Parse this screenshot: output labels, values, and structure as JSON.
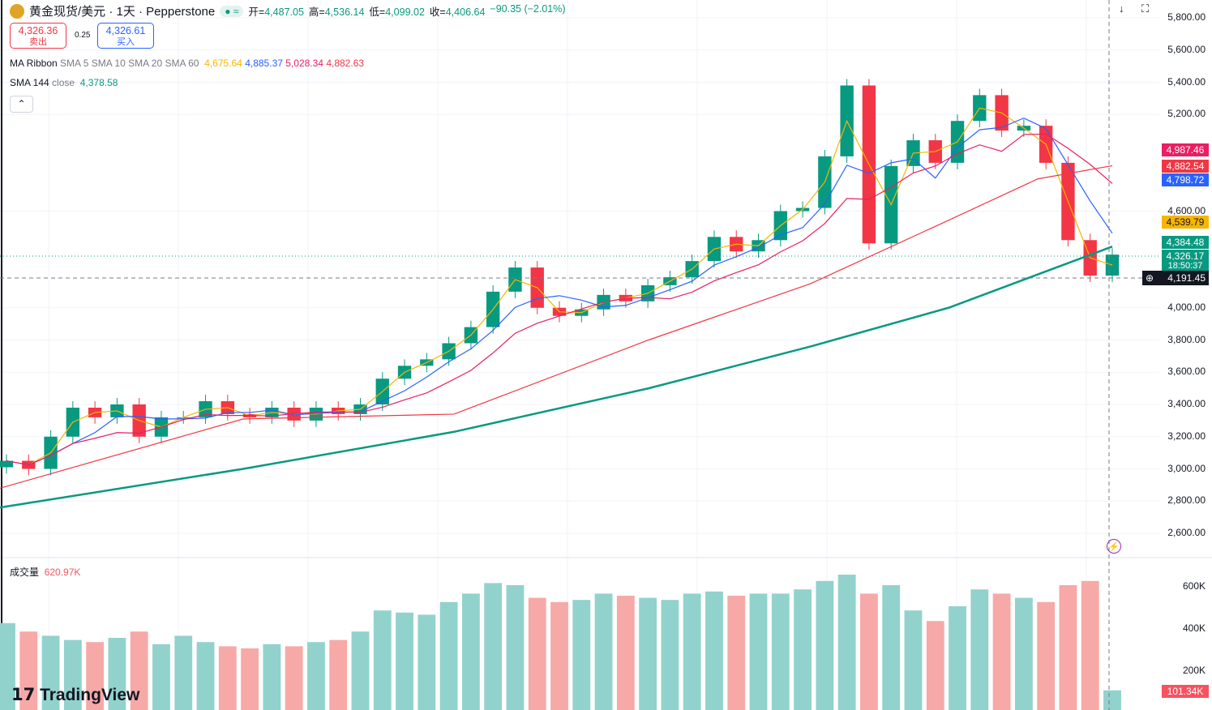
{
  "header": {
    "title": "黄金现货/美元 · 1天 · Pepperstone",
    "open_label": "开",
    "open": "4,487.05",
    "high_label": "高",
    "high": "4,536.14",
    "low_label": "低",
    "low": "4,099.02",
    "close_label": "收",
    "close": "4,406.64",
    "change": "−90.35 (−2.01%)"
  },
  "trade": {
    "sell_price": "4,326.36",
    "sell_label": "卖出",
    "spread": "0.25",
    "buy_price": "4,326.61",
    "buy_label": "买入"
  },
  "legend": {
    "ma_name": "MA Ribbon",
    "ma_params": "SMA 5 SMA 10 SMA 20 SMA 60",
    "ma_values": [
      "4,675.64",
      "4,885.37",
      "5,028.34",
      "4,882.63"
    ],
    "sma_name": "SMA 144",
    "sma_params": "close",
    "sma_value": "4,378.58",
    "volume_name": "成交量",
    "volume_value": "620.97K"
  },
  "colors": {
    "up": "#089981",
    "down": "#f23645",
    "sma5": "#f7b500",
    "sma10": "#2962ff",
    "sma20": "#e91e63",
    "sma60": "#f23645",
    "sma144": "#089981"
  },
  "price_axis": [
    "5,800.00",
    "5,600.00",
    "5,400.00",
    "5,200.00",
    "4,600.00",
    "4,000.00",
    "3,800.00",
    "3,600.00",
    "3,400.00",
    "3,200.00",
    "3,000.00",
    "2,800.00",
    "2,600.00"
  ],
  "price_tags": [
    {
      "text": "4,987.46",
      "color": "#e91e63"
    },
    {
      "text": "4,882.54",
      "color": "#f23645"
    },
    {
      "text": "4,798.72",
      "color": "#2962ff"
    },
    {
      "text": "4,539.79",
      "color": "#f7b500"
    },
    {
      "text": "4,384.48",
      "color": "#089981"
    },
    {
      "text": "4,326.17",
      "color": "#089981"
    }
  ],
  "countdown": "18:50:37",
  "crosshair_price": "4,191.45",
  "volume_axis": [
    "600K",
    "400K",
    "200K"
  ],
  "volume_tag": "101.34K",
  "brand": "TradingView",
  "chart_data": {
    "type": "candlestick",
    "ylim": [
      2600,
      5800
    ],
    "volume_ylim": [
      0,
      700
    ],
    "closes": [
      3050,
      3000,
      3200,
      3380,
      3320,
      3400,
      3200,
      3320,
      3320,
      3420,
      3340,
      3320,
      3380,
      3300,
      3380,
      3340,
      3400,
      3560,
      3640,
      3680,
      3780,
      3880,
      4100,
      4250,
      4000,
      3950,
      3990,
      4080,
      4040,
      4140,
      4190,
      4290,
      4440,
      4350,
      4420,
      4600,
      4620,
      4940,
      5380,
      4400,
      4880,
      5040,
      4900,
      5160,
      5320,
      5100,
      5130,
      4900,
      4420,
      4200,
      4330
    ],
    "volumes": [
      420,
      380,
      360,
      340,
      330,
      350,
      380,
      320,
      360,
      330,
      310,
      300,
      320,
      310,
      330,
      340,
      380,
      480,
      470,
      460,
      520,
      560,
      610,
      600,
      540,
      520,
      530,
      560,
      550,
      540,
      530,
      560,
      570,
      550,
      560,
      560,
      580,
      620,
      650,
      560,
      600,
      480,
      430,
      500,
      580,
      560,
      540,
      520,
      600,
      620,
      101
    ],
    "sma144": [
      [
        0,
        2760
      ],
      [
        300,
        3000
      ],
      [
        560,
        3230
      ],
      [
        800,
        3500
      ],
      [
        1000,
        3760
      ],
      [
        1170,
        4000
      ],
      [
        1372,
        4380
      ]
    ],
    "sma60": [
      [
        0,
        2880
      ],
      [
        300,
        3310
      ],
      [
        560,
        3340
      ],
      [
        800,
        3800
      ],
      [
        1000,
        4150
      ],
      [
        1160,
        4520
      ],
      [
        1280,
        4800
      ],
      [
        1372,
        4882
      ]
    ]
  }
}
